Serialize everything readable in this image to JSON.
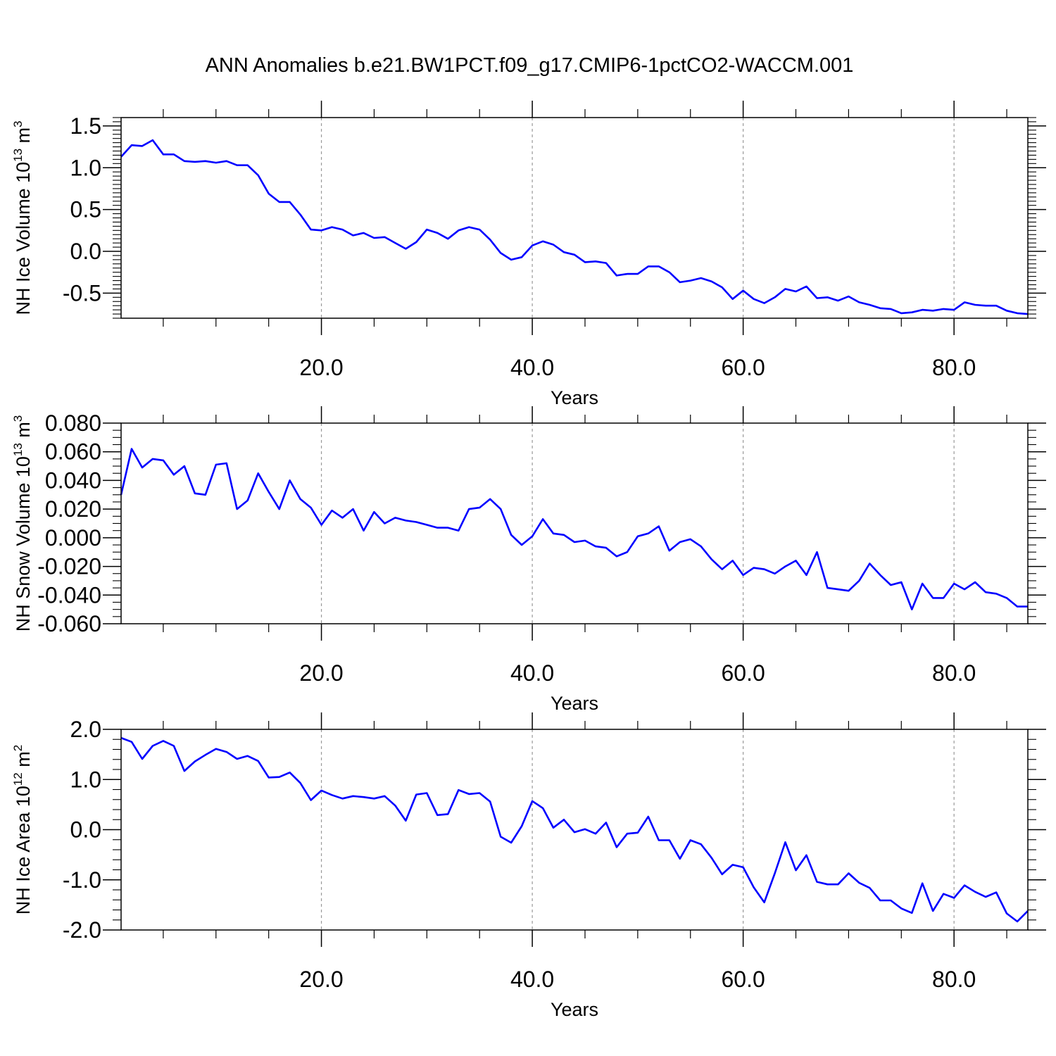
{
  "figure": {
    "title": "ANN Anomalies b.e21.BW1PCT.f09_g17.CMIP6-1pctCO2-WACCM.001"
  },
  "chart_data": [
    {
      "type": "line",
      "xlabel": "Years",
      "ylabel": "NH Ice Volume 10",
      "ylabel_sup1": "13",
      "ylabel_mid": " m",
      "ylabel_sup2": "3",
      "xlim": [
        1,
        87
      ],
      "ylim": [
        -0.8,
        1.6
      ],
      "xticks": [
        20,
        40,
        60,
        80
      ],
      "xtick_labels": [
        "20.0",
        "40.0",
        "60.0",
        "80.0"
      ],
      "yticks": [
        -0.5,
        0.0,
        0.5,
        1.0,
        1.5
      ],
      "ytick_labels": [
        "-0.5",
        "0.0",
        "0.5",
        "1.0",
        "1.5"
      ],
      "grid": "vertical dashed at major x ticks",
      "line_color": "#0000ff",
      "x_start": 1,
      "x_step": 1,
      "values": [
        1.13,
        1.27,
        1.26,
        1.33,
        1.16,
        1.16,
        1.08,
        1.07,
        1.08,
        1.06,
        1.08,
        1.03,
        1.03,
        0.91,
        0.69,
        0.59,
        0.59,
        0.44,
        0.26,
        0.25,
        0.29,
        0.26,
        0.19,
        0.22,
        0.16,
        0.17,
        0.1,
        0.03,
        0.11,
        0.26,
        0.22,
        0.15,
        0.25,
        0.29,
        0.26,
        0.14,
        -0.02,
        -0.1,
        -0.07,
        0.07,
        0.12,
        0.08,
        -0.01,
        -0.04,
        -0.13,
        -0.12,
        -0.14,
        -0.29,
        -0.27,
        -0.27,
        -0.18,
        -0.18,
        -0.25,
        -0.37,
        -0.35,
        -0.32,
        -0.36,
        -0.43,
        -0.57,
        -0.47,
        -0.57,
        -0.62,
        -0.55,
        -0.45,
        -0.48,
        -0.42,
        -0.56,
        -0.55,
        -0.59,
        -0.54,
        -0.61,
        -0.64,
        -0.68,
        -0.69,
        -0.74,
        -0.73,
        -0.7,
        -0.71,
        -0.69,
        -0.7,
        -0.61,
        -0.64,
        -0.65,
        -0.65,
        -0.71,
        -0.74,
        -0.75
      ]
    },
    {
      "type": "line",
      "xlabel": "Years",
      "ylabel": "NH Snow Volume 10",
      "ylabel_sup1": "13",
      "ylabel_mid": " m",
      "ylabel_sup2": "3",
      "xlim": [
        1,
        87
      ],
      "ylim": [
        -0.06,
        0.08
      ],
      "xticks": [
        20,
        40,
        60,
        80
      ],
      "xtick_labels": [
        "20.0",
        "40.0",
        "60.0",
        "80.0"
      ],
      "yticks": [
        -0.06,
        -0.04,
        -0.02,
        0.0,
        0.02,
        0.04,
        0.06,
        0.08
      ],
      "ytick_labels": [
        "-0.060",
        "-0.040",
        "-0.020",
        "0.000",
        "0.020",
        "0.040",
        "0.060",
        "0.080"
      ],
      "grid": "vertical dashed at major x ticks",
      "line_color": "#0000ff",
      "x_start": 1,
      "x_step": 1,
      "values": [
        0.03,
        0.062,
        0.049,
        0.055,
        0.054,
        0.044,
        0.05,
        0.031,
        0.03,
        0.051,
        0.052,
        0.02,
        0.026,
        0.045,
        0.032,
        0.02,
        0.04,
        0.027,
        0.021,
        0.009,
        0.019,
        0.014,
        0.02,
        0.005,
        0.018,
        0.01,
        0.014,
        0.012,
        0.011,
        0.009,
        0.007,
        0.007,
        0.005,
        0.02,
        0.021,
        0.027,
        0.02,
        0.002,
        -0.005,
        0.001,
        0.013,
        0.003,
        0.002,
        -0.003,
        -0.002,
        -0.006,
        -0.007,
        -0.013,
        -0.01,
        0.001,
        0.003,
        0.008,
        -0.009,
        -0.003,
        -0.001,
        -0.006,
        -0.015,
        -0.022,
        -0.016,
        -0.026,
        -0.021,
        -0.022,
        -0.025,
        -0.02,
        -0.016,
        -0.026,
        -0.01,
        -0.035,
        -0.036,
        -0.037,
        -0.03,
        -0.018,
        -0.026,
        -0.033,
        -0.031,
        -0.05,
        -0.032,
        -0.042,
        -0.042,
        -0.032,
        -0.036,
        -0.031,
        -0.038,
        -0.039,
        -0.042,
        -0.048,
        -0.048
      ]
    },
    {
      "type": "line",
      "xlabel": "Years",
      "ylabel": "NH Ice Area 10",
      "ylabel_sup1": "12",
      "ylabel_mid": " m",
      "ylabel_sup2": "2",
      "xlim": [
        1,
        87
      ],
      "ylim": [
        -2.0,
        2.0
      ],
      "xticks": [
        20,
        40,
        60,
        80
      ],
      "xtick_labels": [
        "20.0",
        "40.0",
        "60.0",
        "80.0"
      ],
      "yticks": [
        -2.0,
        -1.0,
        0.0,
        1.0,
        2.0
      ],
      "ytick_labels": [
        "-2.0",
        "-1.0",
        "0.0",
        "1.0",
        "2.0"
      ],
      "grid": "vertical dashed at major x ticks",
      "line_color": "#0000ff",
      "x_start": 1,
      "x_step": 1,
      "values": [
        1.83,
        1.75,
        1.41,
        1.67,
        1.77,
        1.67,
        1.17,
        1.36,
        1.49,
        1.61,
        1.55,
        1.41,
        1.47,
        1.37,
        1.04,
        1.05,
        1.14,
        0.93,
        0.59,
        0.78,
        0.69,
        0.62,
        0.67,
        0.65,
        0.62,
        0.67,
        0.48,
        0.18,
        0.7,
        0.73,
        0.29,
        0.31,
        0.79,
        0.71,
        0.73,
        0.56,
        -0.14,
        -0.26,
        0.07,
        0.57,
        0.43,
        0.04,
        0.2,
        -0.05,
        0.01,
        -0.08,
        0.14,
        -0.35,
        -0.08,
        -0.06,
        0.26,
        -0.21,
        -0.21,
        -0.58,
        -0.21,
        -0.29,
        -0.56,
        -0.89,
        -0.7,
        -0.75,
        -1.15,
        -1.45,
        -0.87,
        -0.25,
        -0.81,
        -0.51,
        -1.04,
        -1.09,
        -1.09,
        -0.87,
        -1.06,
        -1.16,
        -1.41,
        -1.41,
        -1.57,
        -1.66,
        -1.07,
        -1.62,
        -1.28,
        -1.36,
        -1.11,
        -1.24,
        -1.34,
        -1.25,
        -1.67,
        -1.83,
        -1.62
      ]
    }
  ]
}
